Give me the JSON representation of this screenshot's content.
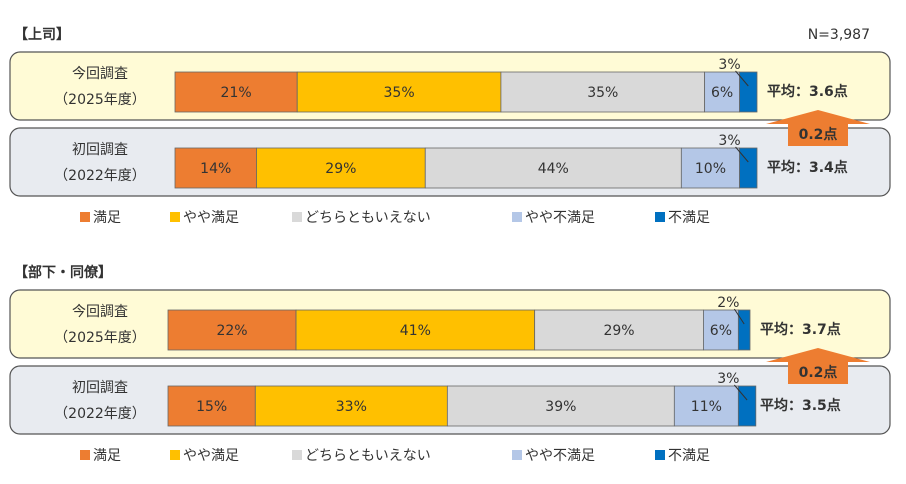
{
  "chart_data": [
    {
      "type": "bar",
      "orientation": "horizontal",
      "stacked": true,
      "title": "【上司】",
      "note": "N=3,987",
      "categories": [
        "今回調査",
        "初回調査"
      ],
      "periods": [
        "（2025年度）",
        "（2022年度）"
      ],
      "xlim": [
        0,
        100
      ],
      "series": [
        {
          "name": "満足",
          "color": "#ed7d31",
          "values": [
            21,
            14
          ],
          "value_labels": [
            "21%",
            "14%"
          ]
        },
        {
          "name": "やや満足",
          "color": "#ffc000",
          "values": [
            35,
            29
          ],
          "value_labels": [
            "35%",
            "29%"
          ]
        },
        {
          "name": "どちらともいえない",
          "color": "#d9d9d9",
          "values": [
            35,
            44
          ],
          "value_labels": [
            "35%",
            "44%"
          ]
        },
        {
          "name": "やや不満足",
          "color": "#b4c7e7",
          "values": [
            6,
            10
          ],
          "value_labels": [
            "6%",
            "10%"
          ]
        },
        {
          "name": "不満足",
          "color": "#0070c0",
          "values": [
            3,
            3
          ],
          "value_labels": [
            "3%",
            "3%"
          ]
        }
      ],
      "averages": [
        "平均：3.6点",
        "平均：3.4点"
      ],
      "difference": "0.2点"
    },
    {
      "type": "bar",
      "orientation": "horizontal",
      "stacked": true,
      "title": "【部下・同僚】",
      "categories": [
        "今回調査",
        "初回調査"
      ],
      "periods": [
        "（2025年度）",
        "（2022年度）"
      ],
      "xlim": [
        0,
        100
      ],
      "series": [
        {
          "name": "満足",
          "color": "#ed7d31",
          "values": [
            22,
            15
          ],
          "value_labels": [
            "22%",
            "15%"
          ]
        },
        {
          "name": "やや満足",
          "color": "#ffc000",
          "values": [
            41,
            33
          ],
          "value_labels": [
            "41%",
            "33%"
          ]
        },
        {
          "name": "どちらともいえない",
          "color": "#d9d9d9",
          "values": [
            29,
            39
          ],
          "value_labels": [
            "29%",
            "39%"
          ]
        },
        {
          "name": "やや不満足",
          "color": "#b4c7e7",
          "values": [
            6,
            11
          ],
          "value_labels": [
            "6%",
            "11%"
          ]
        },
        {
          "name": "不満足",
          "color": "#0070c0",
          "values": [
            2,
            3
          ],
          "value_labels": [
            "2%",
            "3%"
          ]
        }
      ],
      "averages": [
        "平均：3.7点",
        "平均：3.5点"
      ],
      "difference": "0.2点"
    }
  ]
}
